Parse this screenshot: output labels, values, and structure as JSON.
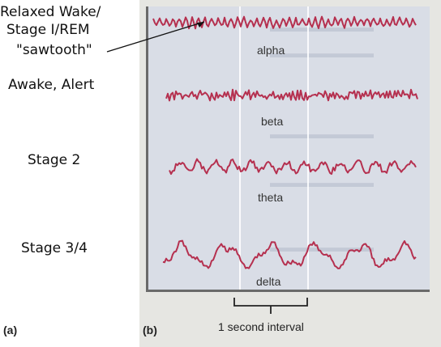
{
  "labels": {
    "relaxed_line1": "Relaxed Wake/",
    "relaxed_line2": "Stage I/REM",
    "sawtooth": "\"sawtooth\"",
    "awake": "Awake, Alert",
    "stage2": "Stage 2",
    "stage34": "Stage 3/4"
  },
  "waves": {
    "alpha": "alpha",
    "beta": "beta",
    "theta": "theta",
    "delta": "delta"
  },
  "panels": {
    "a": "(a)",
    "b": "(b)"
  },
  "interval": "1 second interval",
  "colors": {
    "trace": "#b5304f",
    "plate": "#d9dde6"
  }
}
